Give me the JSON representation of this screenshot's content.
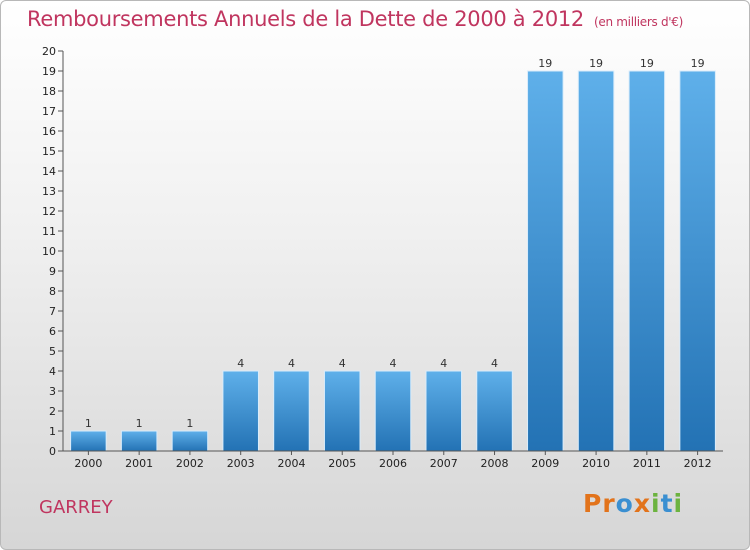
{
  "header": {
    "title": "Remboursements Annuels de la Dette de 2000 à 2012",
    "subtitle": "(en milliers d'€)"
  },
  "footer": {
    "place": "GARREY",
    "logo": [
      "P",
      "r",
      "o",
      "x",
      "i",
      "t",
      "i"
    ]
  },
  "colors": {
    "title": "#c0355f",
    "bar_top": "#5fb0ea",
    "bar_bottom": "#2372b4",
    "logo": [
      "#e2731b",
      "#e2731b",
      "#3a8fd1",
      "#e2731b",
      "#6cb33f",
      "#3a8fd1",
      "#6cb33f"
    ]
  },
  "chart_data": {
    "type": "bar",
    "categories": [
      "2000",
      "2001",
      "2002",
      "2003",
      "2004",
      "2005",
      "2006",
      "2007",
      "2008",
      "2009",
      "2010",
      "2011",
      "2012"
    ],
    "values": [
      1,
      1,
      1,
      4,
      4,
      4,
      4,
      4,
      4,
      19,
      19,
      19,
      19
    ],
    "title": "Remboursements Annuels de la Dette de 2000 à 2012",
    "subtitle": "(en milliers d'€)",
    "ylim": [
      0,
      20
    ],
    "yticks": [
      0,
      1,
      2,
      3,
      4,
      5,
      6,
      7,
      8,
      9,
      10,
      11,
      12,
      13,
      14,
      15,
      16,
      17,
      18,
      19,
      20
    ],
    "grid": false
  }
}
